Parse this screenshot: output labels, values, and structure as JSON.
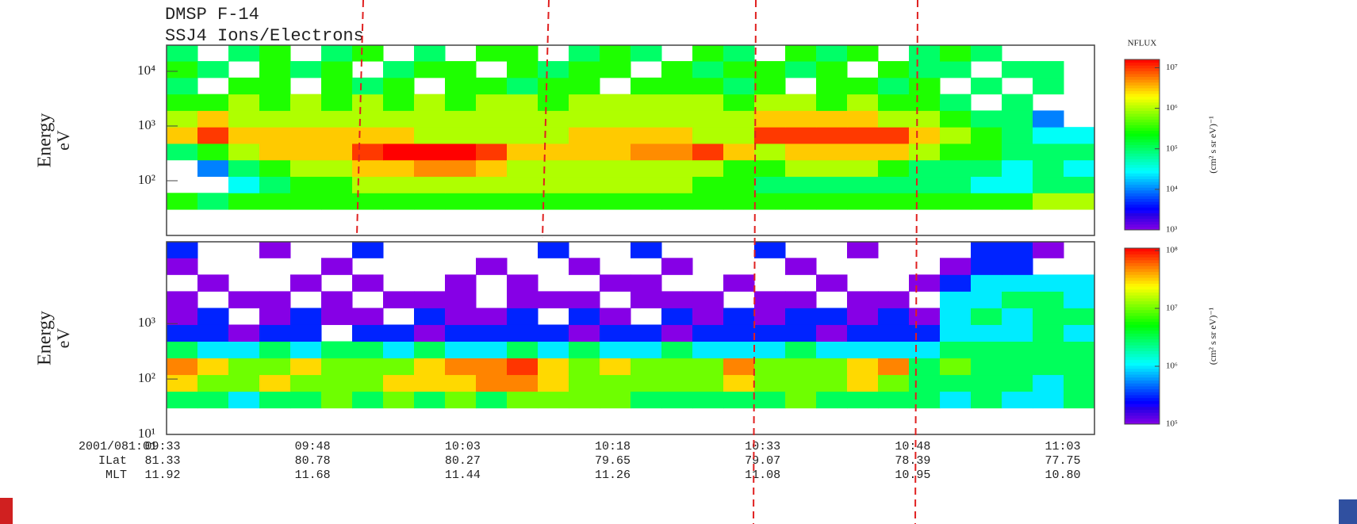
{
  "header": {
    "title": "DMSP F-14",
    "subtitle": "SSJ4 Ions/Electrons"
  },
  "chart_data": [
    {
      "type": "heatmap",
      "ylabel": "Energy",
      "yunit": "eV",
      "log_y": true,
      "ylim": [
        10,
        30000
      ],
      "yticks": [
        {
          "value": 100,
          "label": "10²"
        },
        {
          "value": 1000,
          "label": "10³"
        },
        {
          "value": 10000,
          "label": "10⁴"
        }
      ],
      "ybins": [
        30,
        60,
        120,
        240,
        480,
        960,
        1920,
        3840,
        7680,
        15360,
        30000
      ],
      "z": [
        [
          300000.0,
          100000.0,
          300000.0,
          300000.0,
          300000.0,
          300000.0,
          300000.0,
          300000.0,
          300000.0,
          300000.0,
          300000.0,
          300000.0,
          300000.0,
          300000.0,
          300000.0,
          300000.0,
          300000.0,
          300000.0,
          300000.0,
          300000.0,
          300000.0,
          300000.0,
          300000.0,
          300000.0,
          300000.0,
          300000.0,
          300000.0,
          300000.0,
          1000000.0,
          1000000.0
        ],
        [
          null,
          null,
          30000.0,
          100000.0,
          300000.0,
          300000.0,
          1000000.0,
          1000000.0,
          1000000.0,
          1000000.0,
          1000000.0,
          1000000.0,
          1000000.0,
          1000000.0,
          1000000.0,
          1000000.0,
          1000000.0,
          300000.0,
          300000.0,
          100000.0,
          100000.0,
          100000.0,
          100000.0,
          100000.0,
          100000.0,
          100000.0,
          30000.0,
          30000.0,
          100000.0,
          100000.0
        ],
        [
          null,
          10000.0,
          100000.0,
          300000.0,
          1000000.0,
          1000000.0,
          3000000.0,
          3000000.0,
          5000000.0,
          5000000.0,
          3000000.0,
          1000000.0,
          1000000.0,
          1000000.0,
          1000000.0,
          1000000.0,
          1000000.0,
          1000000.0,
          300000.0,
          300000.0,
          1000000.0,
          1000000.0,
          1000000.0,
          300000.0,
          100000.0,
          100000.0,
          100000.0,
          30000.0,
          100000.0,
          30000.0
        ],
        [
          100000.0,
          300000.0,
          1000000.0,
          3000000.0,
          3000000.0,
          3000000.0,
          10000000.0,
          20000000.0,
          20000000.0,
          20000000.0,
          10000000.0,
          3000000.0,
          3000000.0,
          3000000.0,
          3000000.0,
          5000000.0,
          5000000.0,
          10000000.0,
          3000000.0,
          1000000.0,
          3000000.0,
          3000000.0,
          3000000.0,
          3000000.0,
          1000000.0,
          300000.0,
          300000.0,
          100000.0,
          100000.0,
          100000.0
        ],
        [
          3000000.0,
          10000000.0,
          3000000.0,
          3000000.0,
          3000000.0,
          3000000.0,
          3000000.0,
          3000000.0,
          1000000.0,
          1000000.0,
          1000000.0,
          1000000.0,
          1000000.0,
          3000000.0,
          3000000.0,
          3000000.0,
          3000000.0,
          1000000.0,
          1000000.0,
          10000000.0,
          10000000.0,
          10000000.0,
          10000000.0,
          10000000.0,
          3000000.0,
          1000000.0,
          300000.0,
          100000.0,
          30000.0,
          30000.0
        ],
        [
          1000000.0,
          3000000.0,
          1000000.0,
          1000000.0,
          1000000.0,
          1000000.0,
          1000000.0,
          1000000.0,
          1000000.0,
          1000000.0,
          1000000.0,
          1000000.0,
          1000000.0,
          1000000.0,
          1000000.0,
          1000000.0,
          1000000.0,
          1000000.0,
          1000000.0,
          3000000.0,
          3000000.0,
          3000000.0,
          3000000.0,
          1000000.0,
          1000000.0,
          300000.0,
          100000.0,
          100000.0,
          10000.0,
          null
        ],
        [
          300000.0,
          300000.0,
          1000000.0,
          300000.0,
          1000000.0,
          300000.0,
          1000000.0,
          300000.0,
          1000000.0,
          300000.0,
          1000000.0,
          1000000.0,
          300000.0,
          1000000.0,
          1000000.0,
          1000000.0,
          1000000.0,
          1000000.0,
          300000.0,
          1000000.0,
          1000000.0,
          300000.0,
          1000000.0,
          300000.0,
          300000.0,
          100000.0,
          null,
          100000.0,
          null,
          null
        ],
        [
          100000.0,
          null,
          300000.0,
          300000.0,
          null,
          300000.0,
          100000.0,
          300000.0,
          null,
          300000.0,
          300000.0,
          100000.0,
          300000.0,
          300000.0,
          null,
          300000.0,
          300000.0,
          300000.0,
          100000.0,
          300000.0,
          null,
          300000.0,
          300000.0,
          100000.0,
          300000.0,
          null,
          100000.0,
          null,
          100000.0,
          null
        ],
        [
          300000.0,
          100000.0,
          null,
          300000.0,
          100000.0,
          300000.0,
          null,
          100000.0,
          300000.0,
          300000.0,
          null,
          300000.0,
          100000.0,
          300000.0,
          300000.0,
          null,
          300000.0,
          100000.0,
          300000.0,
          300000.0,
          100000.0,
          300000.0,
          null,
          300000.0,
          100000.0,
          100000.0,
          null,
          100000.0,
          100000.0,
          null
        ],
        [
          100000.0,
          null,
          100000.0,
          300000.0,
          null,
          100000.0,
          300000.0,
          null,
          100000.0,
          null,
          300000.0,
          300000.0,
          null,
          100000.0,
          300000.0,
          100000.0,
          null,
          300000.0,
          100000.0,
          null,
          300000.0,
          100000.0,
          300000.0,
          null,
          100000.0,
          300000.0,
          100000.0,
          null,
          null,
          null
        ]
      ],
      "colorbar": {
        "title": "NFLUX",
        "label": "(cm² s sr eV)⁻¹",
        "log": true,
        "clim": [
          1000,
          16000000
        ],
        "ticks": [
          {
            "value": 1000,
            "label": "10³"
          },
          {
            "value": 10000,
            "label": "10⁴"
          },
          {
            "value": 100000,
            "label": "10⁵"
          },
          {
            "value": 1000000,
            "label": "10⁶"
          },
          {
            "value": 10000000,
            "label": "10⁷"
          }
        ]
      }
    },
    {
      "type": "heatmap",
      "ylabel": "Energy",
      "yunit": "eV",
      "log_y": true,
      "ylim": [
        10,
        30000
      ],
      "yticks": [
        {
          "value": 10,
          "label": "10¹"
        },
        {
          "value": 100,
          "label": "10²"
        },
        {
          "value": 1000,
          "label": "10³"
        }
      ],
      "ybins": [
        30,
        60,
        120,
        240,
        480,
        960,
        1920,
        3840,
        7680,
        15360,
        30000
      ],
      "z": [
        [
          3000000.0,
          3000000.0,
          1000000.0,
          3000000.0,
          3000000.0,
          10000000.0,
          3000000.0,
          10000000.0,
          3000000.0,
          10000000.0,
          3000000.0,
          10000000.0,
          10000000.0,
          10000000.0,
          10000000.0,
          3000000.0,
          3000000.0,
          3000000.0,
          3000000.0,
          3000000.0,
          10000000.0,
          3000000.0,
          3000000.0,
          3000000.0,
          3000000.0,
          1000000.0,
          3000000.0,
          1000000.0,
          1000000.0,
          3000000.0
        ],
        [
          30000000.0,
          10000000.0,
          10000000.0,
          30000000.0,
          10000000.0,
          10000000.0,
          10000000.0,
          30000000.0,
          30000000.0,
          30000000.0,
          50000000.0,
          50000000.0,
          30000000.0,
          10000000.0,
          10000000.0,
          10000000.0,
          10000000.0,
          10000000.0,
          30000000.0,
          10000000.0,
          10000000.0,
          10000000.0,
          30000000.0,
          10000000.0,
          3000000.0,
          3000000.0,
          3000000.0,
          3000000.0,
          1000000.0,
          3000000.0
        ],
        [
          50000000.0,
          30000000.0,
          10000000.0,
          10000000.0,
          30000000.0,
          10000000.0,
          10000000.0,
          10000000.0,
          30000000.0,
          50000000.0,
          50000000.0,
          80000000.0,
          30000000.0,
          10000000.0,
          30000000.0,
          10000000.0,
          10000000.0,
          10000000.0,
          50000000.0,
          10000000.0,
          10000000.0,
          10000000.0,
          30000000.0,
          50000000.0,
          3000000.0,
          10000000.0,
          3000000.0,
          3000000.0,
          3000000.0,
          3000000.0
        ],
        [
          3000000.0,
          1000000.0,
          1000000.0,
          3000000.0,
          1000000.0,
          3000000.0,
          3000000.0,
          1000000.0,
          3000000.0,
          1000000.0,
          1000000.0,
          3000000.0,
          1000000.0,
          3000000.0,
          1000000.0,
          1000000.0,
          3000000.0,
          1000000.0,
          1000000.0,
          1000000.0,
          3000000.0,
          1000000.0,
          1000000.0,
          1000000.0,
          1000000.0,
          3000000.0,
          3000000.0,
          3000000.0,
          3000000.0,
          3000000.0
        ],
        [
          300000.0,
          300000.0,
          100000.0,
          300000.0,
          300000.0,
          null,
          300000.0,
          300000.0,
          100000.0,
          300000.0,
          300000.0,
          300000.0,
          300000.0,
          100000.0,
          300000.0,
          300000.0,
          100000.0,
          300000.0,
          300000.0,
          300000.0,
          300000.0,
          100000.0,
          300000.0,
          300000.0,
          300000.0,
          1000000.0,
          1000000.0,
          1000000.0,
          3000000.0,
          1000000.0
        ],
        [
          100000.0,
          300000.0,
          null,
          100000.0,
          300000.0,
          100000.0,
          100000.0,
          null,
          300000.0,
          100000.0,
          100000.0,
          300000.0,
          null,
          300000.0,
          100000.0,
          null,
          300000.0,
          100000.0,
          300000.0,
          100000.0,
          300000.0,
          300000.0,
          100000.0,
          300000.0,
          100000.0,
          1000000.0,
          3000000.0,
          1000000.0,
          3000000.0,
          3000000.0
        ],
        [
          100000.0,
          null,
          100000.0,
          100000.0,
          null,
          100000.0,
          null,
          100000.0,
          100000.0,
          100000.0,
          null,
          100000.0,
          100000.0,
          100000.0,
          null,
          100000.0,
          100000.0,
          100000.0,
          null,
          100000.0,
          100000.0,
          null,
          100000.0,
          100000.0,
          null,
          1000000.0,
          1000000.0,
          3000000.0,
          3000000.0,
          1000000.0
        ],
        [
          null,
          100000.0,
          null,
          null,
          100000.0,
          null,
          100000.0,
          null,
          null,
          100000.0,
          null,
          100000.0,
          null,
          null,
          100000.0,
          100000.0,
          null,
          null,
          100000.0,
          null,
          null,
          100000.0,
          null,
          null,
          100000.0,
          300000.0,
          1000000.0,
          1000000.0,
          1000000.0,
          1000000.0
        ],
        [
          100000.0,
          null,
          null,
          null,
          null,
          100000.0,
          null,
          null,
          null,
          null,
          100000.0,
          null,
          null,
          100000.0,
          null,
          null,
          100000.0,
          null,
          null,
          null,
          100000.0,
          null,
          null,
          null,
          null,
          100000.0,
          300000.0,
          300000.0,
          null,
          null
        ],
        [
          300000.0,
          null,
          null,
          100000.0,
          null,
          null,
          300000.0,
          null,
          null,
          null,
          null,
          null,
          300000.0,
          null,
          null,
          300000.0,
          null,
          null,
          null,
          300000.0,
          null,
          null,
          100000.0,
          null,
          null,
          null,
          300000.0,
          300000.0,
          100000.0,
          null
        ]
      ],
      "colorbar": {
        "label": "(cm² s sr eV)⁻¹",
        "log": true,
        "clim": [
          100000,
          110000000
        ],
        "ticks": [
          {
            "value": 100000,
            "label": "10⁵"
          },
          {
            "value": 1000000,
            "label": "10⁶"
          },
          {
            "value": 10000000,
            "label": "10⁷"
          },
          {
            "value": 100000000,
            "label": "10⁸"
          }
        ]
      }
    }
  ],
  "x_axis": {
    "row_labels": [
      "2001/081:01",
      "ILat",
      "MLT"
    ],
    "time": [
      "09:33",
      "09:48",
      "10:03",
      "10:18",
      "10:33",
      "10:48",
      "11:03"
    ],
    "ilat": [
      "81.33",
      "80.78",
      "80.27",
      "79.65",
      "79.07",
      "78.39",
      "77.75"
    ],
    "mlt": [
      "11.92",
      "11.68",
      "11.44",
      "11.26",
      "11.08",
      "10.95",
      "10.80"
    ]
  }
}
